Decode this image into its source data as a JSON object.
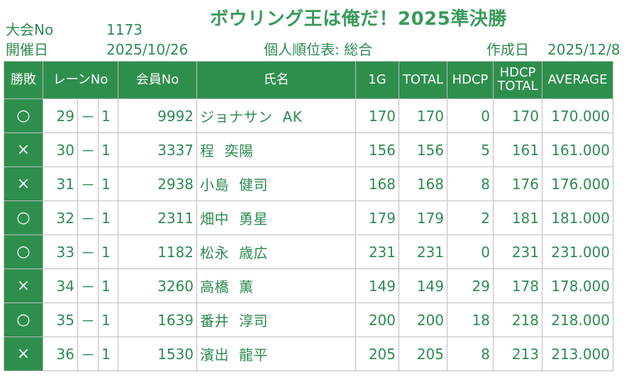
{
  "header": {
    "title": "ボウリング王は俺だ！2025準決勝",
    "event_label": "大会No",
    "event_no": "1173",
    "date_label": "開催日",
    "date_value": "2025/10/26",
    "report_name": "個人順位表: 総合",
    "created_label": "作成日",
    "created_date": "2025/12/8"
  },
  "columns": {
    "result": "勝敗",
    "lane": "レーンNo",
    "member": "会員No",
    "name": "氏名",
    "g1": "1G",
    "total": "TOTAL",
    "hdcp": "HDCP",
    "hdcp_total_1": "HDCP",
    "hdcp_total_2": "TOTAL",
    "average": "AVERAGE"
  },
  "rows": [
    {
      "result": "○",
      "lane": "29",
      "dash": "－",
      "sub": "1",
      "member": "9992",
      "last": "ジョナサン",
      "first": "AK",
      "g1": "170",
      "total": "170",
      "hdcp": "0",
      "hdcp_total": "170",
      "average": "170.000"
    },
    {
      "result": "×",
      "lane": "30",
      "dash": "－",
      "sub": "1",
      "member": "3337",
      "last": "程",
      "first": "奕陽",
      "g1": "156",
      "total": "156",
      "hdcp": "5",
      "hdcp_total": "161",
      "average": "161.000"
    },
    {
      "result": "×",
      "lane": "31",
      "dash": "－",
      "sub": "1",
      "member": "2938",
      "last": "小島",
      "first": "健司",
      "g1": "168",
      "total": "168",
      "hdcp": "8",
      "hdcp_total": "176",
      "average": "176.000"
    },
    {
      "result": "○",
      "lane": "32",
      "dash": "－",
      "sub": "1",
      "member": "2311",
      "last": "畑中",
      "first": "勇星",
      "g1": "179",
      "total": "179",
      "hdcp": "2",
      "hdcp_total": "181",
      "average": "181.000"
    },
    {
      "result": "○",
      "lane": "33",
      "dash": "－",
      "sub": "1",
      "member": "1182",
      "last": "松永",
      "first": "歳広",
      "g1": "231",
      "total": "231",
      "hdcp": "0",
      "hdcp_total": "231",
      "average": "231.000"
    },
    {
      "result": "×",
      "lane": "34",
      "dash": "－",
      "sub": "1",
      "member": "3260",
      "last": "高橋",
      "first": "薫",
      "g1": "149",
      "total": "149",
      "hdcp": "29",
      "hdcp_total": "178",
      "average": "178.000"
    },
    {
      "result": "○",
      "lane": "35",
      "dash": "－",
      "sub": "1",
      "member": "1639",
      "last": "番井",
      "first": "淳司",
      "g1": "200",
      "total": "200",
      "hdcp": "18",
      "hdcp_total": "218",
      "average": "218.000"
    },
    {
      "result": "×",
      "lane": "36",
      "dash": "－",
      "sub": "1",
      "member": "1530",
      "last": "濱出",
      "first": "龍平",
      "g1": "205",
      "total": "205",
      "hdcp": "8",
      "hdcp_total": "213",
      "average": "213.000"
    }
  ]
}
